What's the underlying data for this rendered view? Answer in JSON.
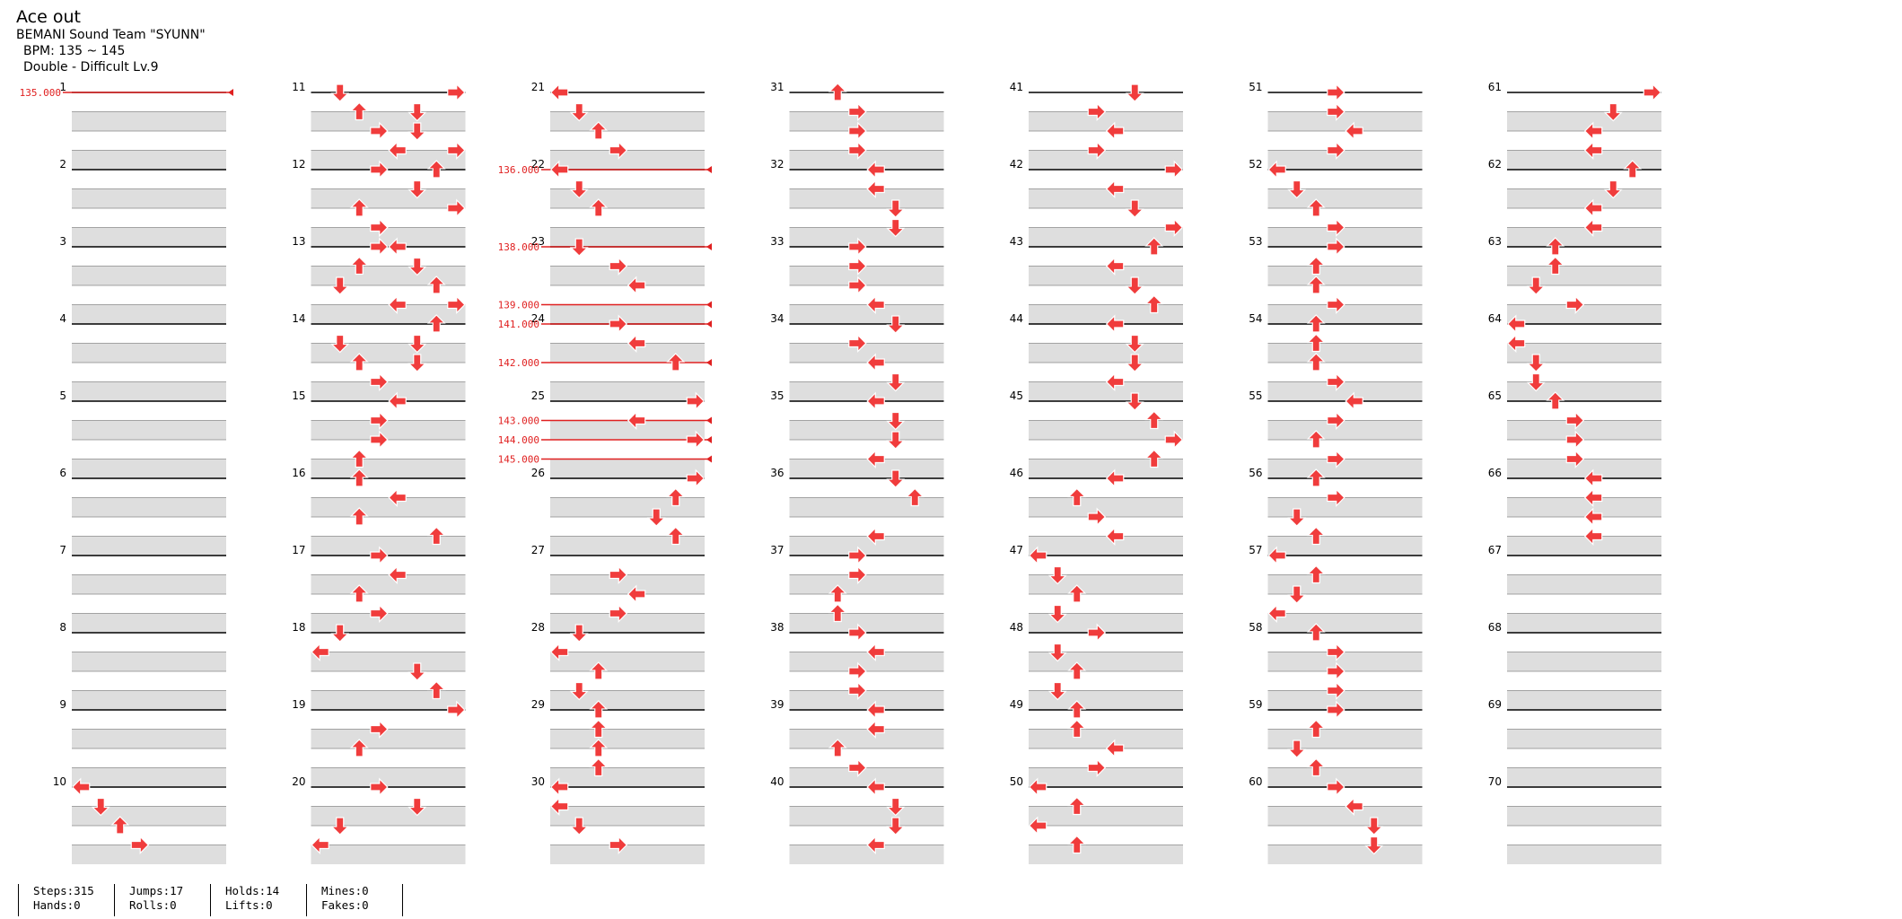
{
  "song": {
    "title": "Ace out",
    "artist": "BEMANI Sound Team \"SYUNN\"",
    "bpm": "BPM: 135 ~ 145",
    "difficulty": "Double - Difficult Lv.9"
  },
  "stats": [
    {
      "label1": "Steps:315",
      "label2": "Hands:0"
    },
    {
      "label1": "Jumps:17",
      "label2": "Rolls:0"
    },
    {
      "label1": "Holds:14",
      "label2": "Lifts:0"
    },
    {
      "label1": "Mines:0",
      "label2": "Fakes:0"
    }
  ],
  "colors": {
    "quarter": "#f03c3c",
    "eighth": "#3355e8",
    "sixteenth": "#f2d832",
    "hold": "#8fe38f",
    "stop_line": "#e02020",
    "band": "#dedede"
  },
  "bpm_changes": [
    {
      "value": "135.000",
      "beat": 0
    },
    {
      "value": "136.000",
      "beat": 84
    },
    {
      "value": "138.000",
      "beat": 88
    },
    {
      "value": "139.000",
      "beat": 91
    },
    {
      "value": "141.000",
      "beat": 92
    },
    {
      "value": "142.000",
      "beat": 94
    },
    {
      "value": "143.000",
      "beat": 97
    },
    {
      "value": "144.000",
      "beat": 98
    },
    {
      "value": "145.000",
      "beat": 99
    }
  ],
  "measures": 70,
  "measures_per_column": 10,
  "lanes": 8,
  "notes": [
    [
      36,
      0
    ],
    [
      37,
      1
    ],
    [
      38,
      2
    ],
    [
      39,
      3
    ],
    [
      40,
      1
    ],
    [
      41,
      2
    ],
    [
      42,
      3
    ],
    [
      43,
      4
    ],
    [
      44,
      3
    ],
    [
      46,
      2
    ],
    [
      47,
      3
    ],
    [
      48,
      4
    ],
    [
      49,
      5
    ],
    [
      50,
      6
    ],
    [
      51,
      7
    ],
    [
      52,
      6
    ],
    [
      53,
      5
    ],
    [
      54,
      5
    ],
    [
      40,
      7
    ],
    [
      41,
      5
    ],
    [
      42,
      5
    ],
    [
      43,
      7
    ],
    [
      44,
      6
    ],
    [
      45,
      5
    ],
    [
      46,
      7
    ],
    [
      47,
      3
    ],
    [
      48,
      3
    ],
    [
      49,
      2
    ],
    [
      50,
      1
    ],
    [
      51,
      4
    ],
    [
      53,
      1
    ],
    [
      54,
      2
    ],
    [
      55,
      3
    ],
    [
      56,
      4
    ],
    [
      57,
      3
    ],
    [
      58,
      3
    ],
    [
      59,
      2
    ],
    [
      60,
      2
    ],
    [
      61,
      4
    ],
    [
      62,
      2
    ],
    [
      63,
      6
    ],
    [
      64,
      3
    ],
    [
      65,
      4
    ],
    [
      66,
      2
    ],
    [
      67,
      3
    ],
    [
      68,
      1
    ],
    [
      69,
      0
    ],
    [
      70,
      5
    ],
    [
      71,
      6
    ],
    [
      72,
      7
    ],
    [
      73,
      3
    ],
    [
      74,
      2
    ],
    [
      76,
      3
    ],
    [
      77,
      5
    ],
    [
      78,
      1
    ],
    [
      79,
      0
    ],
    [
      80,
      0
    ],
    [
      81,
      1
    ],
    [
      82,
      2
    ],
    [
      83,
      3
    ],
    [
      84,
      0
    ],
    [
      85,
      1
    ],
    [
      86,
      2
    ],
    [
      88,
      1
    ],
    [
      89,
      3
    ],
    [
      90,
      4
    ],
    [
      92,
      3
    ],
    [
      93,
      4
    ],
    [
      94,
      6
    ],
    [
      96,
      7
    ],
    [
      97,
      4
    ],
    [
      98,
      7
    ],
    [
      100,
      7
    ],
    [
      101,
      6
    ],
    [
      102,
      5
    ],
    [
      103,
      6
    ],
    [
      105,
      3
    ],
    [
      106,
      4
    ],
    [
      107,
      3
    ],
    [
      108,
      1
    ],
    [
      109,
      0
    ],
    [
      110,
      2
    ],
    [
      111,
      1
    ],
    [
      112,
      2
    ],
    [
      113,
      2
    ],
    [
      114,
      2
    ],
    [
      115,
      2
    ],
    [
      116,
      0
    ],
    [
      117,
      0
    ],
    [
      118,
      1
    ],
    [
      119,
      3
    ],
    [
      120,
      2
    ],
    [
      121,
      3
    ],
    [
      122,
      3
    ],
    [
      123,
      3
    ],
    [
      124,
      4
    ],
    [
      125,
      4
    ],
    [
      126,
      5
    ],
    [
      127,
      5
    ],
    [
      128,
      3
    ],
    [
      129,
      3
    ],
    [
      130,
      3
    ],
    [
      131,
      4
    ],
    [
      132,
      5
    ],
    [
      133,
      3
    ],
    [
      134,
      4
    ],
    [
      135,
      5
    ],
    [
      136,
      4
    ],
    [
      137,
      5
    ],
    [
      138,
      5
    ],
    [
      139,
      4
    ],
    [
      140,
      5
    ],
    [
      141,
      6
    ],
    [
      143,
      4
    ],
    [
      144,
      3
    ],
    [
      145,
      3
    ],
    [
      146,
      2
    ],
    [
      147,
      2
    ],
    [
      148,
      3
    ],
    [
      149,
      4
    ],
    [
      150,
      3
    ],
    [
      151,
      3
    ],
    [
      152,
      4
    ],
    [
      153,
      4
    ],
    [
      154,
      2
    ],
    [
      155,
      3
    ],
    [
      156,
      4
    ],
    [
      157,
      5
    ],
    [
      158,
      5
    ],
    [
      159,
      4
    ],
    [
      160,
      5
    ],
    [
      161,
      3
    ],
    [
      162,
      4
    ],
    [
      163,
      3
    ],
    [
      164,
      7
    ],
    [
      165,
      4
    ],
    [
      166,
      5
    ],
    [
      167,
      7
    ],
    [
      168,
      6
    ],
    [
      169,
      4
    ],
    [
      170,
      5
    ],
    [
      171,
      6
    ],
    [
      172,
      4
    ],
    [
      173,
      5
    ],
    [
      174,
      5
    ],
    [
      175,
      4
    ],
    [
      176,
      5
    ],
    [
      177,
      6
    ],
    [
      178,
      7
    ],
    [
      179,
      6
    ],
    [
      180,
      4
    ],
    [
      181,
      2
    ],
    [
      182,
      3
    ],
    [
      183,
      4
    ],
    [
      184,
      0
    ],
    [
      185,
      1
    ],
    [
      186,
      2
    ],
    [
      187,
      1
    ],
    [
      188,
      3
    ],
    [
      189,
      1
    ],
    [
      190,
      2
    ],
    [
      191,
      1
    ],
    [
      192,
      2
    ],
    [
      193,
      2
    ],
    [
      194,
      4
    ],
    [
      195,
      3
    ],
    [
      196,
      0
    ],
    [
      197,
      2
    ],
    [
      198,
      0
    ],
    [
      199,
      2
    ],
    [
      200,
      3
    ],
    [
      201,
      3
    ],
    [
      202,
      4
    ],
    [
      203,
      3
    ],
    [
      204,
      0
    ],
    [
      205,
      1
    ],
    [
      206,
      2
    ],
    [
      207,
      3
    ],
    [
      208,
      3
    ],
    [
      209,
      2
    ],
    [
      210,
      2
    ],
    [
      211,
      3
    ],
    [
      212,
      2
    ],
    [
      213,
      2
    ],
    [
      214,
      2
    ],
    [
      215,
      3
    ],
    [
      216,
      4
    ],
    [
      217,
      3
    ],
    [
      218,
      2
    ],
    [
      219,
      3
    ],
    [
      220,
      2
    ],
    [
      221,
      3
    ],
    [
      222,
      1
    ],
    [
      223,
      2
    ],
    [
      224,
      0
    ],
    [
      225,
      2
    ],
    [
      226,
      1
    ],
    [
      227,
      0
    ],
    [
      228,
      2
    ],
    [
      229,
      3
    ],
    [
      230,
      3
    ],
    [
      231,
      3
    ],
    [
      232,
      3
    ],
    [
      233,
      2
    ],
    [
      234,
      1
    ],
    [
      235,
      2
    ],
    [
      236,
      3
    ],
    [
      237,
      4
    ],
    [
      238,
      5
    ],
    [
      239,
      5
    ],
    [
      240,
      7
    ],
    [
      241,
      5
    ],
    [
      242,
      4
    ],
    [
      243,
      4
    ],
    [
      244,
      6
    ],
    [
      245,
      5
    ],
    [
      246,
      4
    ],
    [
      247,
      4
    ],
    [
      248,
      2
    ],
    [
      249,
      2
    ],
    [
      250,
      1
    ],
    [
      251,
      3
    ],
    [
      252,
      0
    ],
    [
      253,
      0
    ],
    [
      254,
      1
    ],
    [
      255,
      1
    ],
    [
      256,
      2
    ],
    [
      257,
      3
    ],
    [
      258,
      3
    ],
    [
      259,
      3
    ],
    [
      260,
      4
    ],
    [
      261,
      4
    ],
    [
      262,
      4
    ],
    [
      263,
      4
    ]
  ],
  "holds": []
}
